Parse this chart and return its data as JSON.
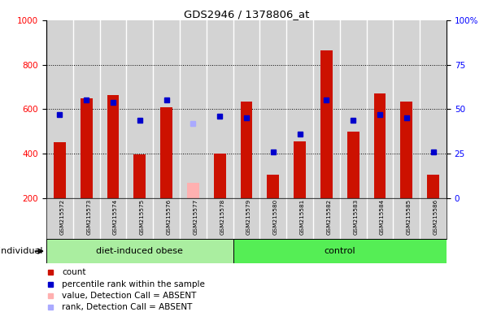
{
  "title": "GDS2946 / 1378806_at",
  "samples": [
    "GSM215572",
    "GSM215573",
    "GSM215574",
    "GSM215575",
    "GSM215576",
    "GSM215577",
    "GSM215578",
    "GSM215579",
    "GSM215580",
    "GSM215581",
    "GSM215582",
    "GSM215583",
    "GSM215584",
    "GSM215585",
    "GSM215586"
  ],
  "groups": [
    "diet-induced obese",
    "diet-induced obese",
    "diet-induced obese",
    "diet-induced obese",
    "diet-induced obese",
    "diet-induced obese",
    "diet-induced obese",
    "control",
    "control",
    "control",
    "control",
    "control",
    "control",
    "control",
    "control"
  ],
  "count_values": [
    450,
    650,
    665,
    395,
    610,
    0,
    400,
    635,
    305,
    455,
    865,
    500,
    670,
    635,
    305
  ],
  "count_absent": [
    false,
    false,
    false,
    false,
    false,
    true,
    false,
    false,
    false,
    false,
    false,
    false,
    false,
    false,
    false
  ],
  "absent_count_value": 270,
  "percentile_values": [
    47,
    55,
    54,
    44,
    55,
    0,
    46,
    45,
    26,
    36,
    55,
    44,
    47,
    45,
    26
  ],
  "percentile_absent": [
    false,
    false,
    false,
    false,
    false,
    true,
    false,
    false,
    false,
    false,
    false,
    false,
    false,
    false,
    false
  ],
  "absent_percentile_value": 42,
  "ylim_left": [
    200,
    1000
  ],
  "ylim_right": [
    0,
    100
  ],
  "bar_color": "#cc1100",
  "bar_absent_color": "#ffb0b0",
  "dot_color": "#0000cc",
  "dot_absent_color": "#aaaaff",
  "bg_color": "#d3d3d3",
  "legend_items": [
    "count",
    "percentile rank within the sample",
    "value, Detection Call = ABSENT",
    "rank, Detection Call = ABSENT"
  ],
  "legend_colors": [
    "#cc1100",
    "#0000cc",
    "#ffb0b0",
    "#aaaaff"
  ]
}
